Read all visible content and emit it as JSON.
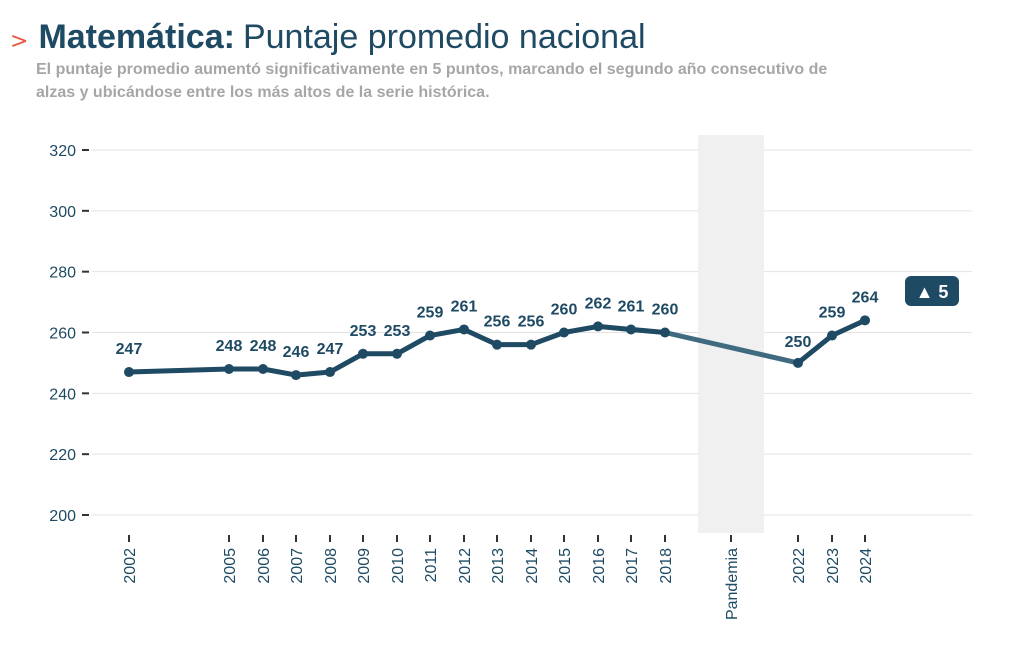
{
  "header": {
    "arrow": ">",
    "title_bold": "Matemática:",
    "title_rest": "Puntaje promedio nacional",
    "subtitle": "El puntaje promedio aumentó significativamente en 5 puntos, marcando el segundo año consecutivo de alzas y ubicándose entre los más altos de la serie histórica."
  },
  "colors": {
    "line": "#1f4a63",
    "accent_arrow": "#e8573d",
    "pandemic_band": "#f0f0f0",
    "grid": "#e3e3e3"
  },
  "chart_data": {
    "type": "line",
    "categories": [
      "2002",
      "2005",
      "2006",
      "2007",
      "2008",
      "2009",
      "2010",
      "2011",
      "2012",
      "2013",
      "2014",
      "2015",
      "2016",
      "2017",
      "2018",
      "Pandemia",
      "2022",
      "2023",
      "2024"
    ],
    "values": [
      247,
      248,
      248,
      246,
      247,
      253,
      253,
      259,
      261,
      256,
      256,
      260,
      262,
      261,
      260,
      null,
      250,
      259,
      264
    ],
    "y_ticks": [
      200,
      220,
      240,
      260,
      280,
      300,
      320
    ],
    "ylim": [
      195,
      325
    ],
    "shaded_category": "Pandemia",
    "change_badge": "▲ 5",
    "grid": true
  }
}
